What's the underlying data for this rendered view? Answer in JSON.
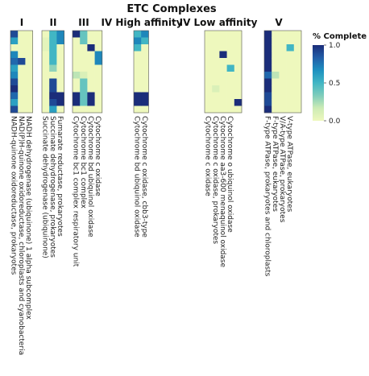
{
  "chart_data": {
    "type": "heatmap",
    "title": "ETC Complexes",
    "n_rows": 12,
    "colorbar": {
      "title": "% Complete",
      "ticks": [
        "1.0",
        "0.5",
        "0.0"
      ],
      "tick_values": [
        1.0,
        0.5,
        0.0
      ],
      "colors": [
        "#eef8bd",
        "#cdebb5",
        "#7fcdbb",
        "#41b6c4",
        "#1d91c0",
        "#225ea8",
        "#1b2d7a"
      ],
      "placement": "right"
    },
    "groups": [
      {
        "label": "I",
        "columns": [
          {
            "name": "NADH-quinone oxidoreductase, prokaryotes",
            "values": [
              0.9,
              0.6,
              0.0,
              0.7,
              0.8,
              0.6,
              0.7,
              0.9,
              1.0,
              0.8,
              0.6,
              0.9
            ]
          },
          {
            "name": "NAD(P)H-quinone oxidoreductase, chloroplasts and cyanobacteria",
            "values": [
              0.0,
              0.0,
              0.0,
              0.0,
              0.9,
              0.0,
              0.0,
              0.0,
              0.0,
              0.0,
              0.0,
              0.0
            ]
          },
          {
            "name": "NADH dehydrogenase (ubiquinone) 1 alpha subcomplex",
            "values": [
              0.0,
              0.0,
              0.0,
              0.0,
              0.0,
              0.0,
              0.0,
              0.0,
              0.0,
              0.0,
              0.0,
              0.0
            ]
          }
        ]
      },
      {
        "label": "II",
        "columns": [
          {
            "name": "Succinate dehydrogenase (ubiquinone)",
            "values": [
              0.0,
              0.05,
              0.05,
              0.0,
              0.0,
              0.0,
              0.0,
              0.0,
              0.0,
              0.0,
              0.0,
              0.0
            ]
          },
          {
            "name": "Succinate dehydrogenase, prokaryotes",
            "values": [
              0.5,
              0.5,
              0.5,
              0.5,
              0.5,
              0.3,
              0.0,
              0.9,
              0.9,
              1.0,
              0.9,
              0.6
            ]
          },
          {
            "name": "Fumarate reductase, prokaryotes",
            "values": [
              0.7,
              0.7,
              0.0,
              0.0,
              0.0,
              0.0,
              0.0,
              0.0,
              0.0,
              1.0,
              1.0,
              0.0
            ]
          }
        ]
      },
      {
        "label": "III",
        "columns": [
          {
            "name": "Cytochrome bc1 complex respiratory unit",
            "values": [
              1.0,
              0.0,
              0.0,
              0.0,
              0.0,
              0.0,
              0.2,
              0.0,
              0.0,
              1.0,
              1.0,
              0.0
            ]
          },
          {
            "name": "Cytochrome bc1 complex",
            "values": [
              0.4,
              0.4,
              0.0,
              0.0,
              0.0,
              0.0,
              0.1,
              0.4,
              0.4,
              0.4,
              0.4,
              0.0
            ]
          },
          {
            "name": "Cytochrome bd ubiquinol oxidase",
            "values": [
              0.0,
              0.0,
              1.0,
              0.0,
              0.0,
              0.0,
              0.0,
              0.0,
              0.0,
              1.0,
              1.0,
              0.0
            ]
          },
          {
            "name": "Cytochrome c oxidase",
            "values": [
              0.0,
              0.0,
              0.0,
              0.7,
              0.7,
              0.0,
              0.0,
              0.0,
              0.0,
              0.0,
              0.0,
              0.0
            ]
          }
        ]
      },
      {
        "label": "IV High affinity",
        "columns": [
          {
            "name": "Cytochrome bd ubiquinol oxidase",
            "values": [
              0.5,
              0.7,
              0.5,
              0.0,
              0.0,
              0.0,
              0.0,
              0.0,
              0.0,
              1.0,
              1.0,
              0.0
            ]
          },
          {
            "name": "Cytochrome c oxidase, cbb3-type",
            "values": [
              0.7,
              0.5,
              0.0,
              0.0,
              0.0,
              0.0,
              0.0,
              0.0,
              0.0,
              1.0,
              1.0,
              0.0
            ]
          }
        ]
      },
      {
        "label": "IV Low affinity",
        "columns": [
          {
            "name": "Cytochrome c oxidase",
            "values": [
              0.0,
              0.0,
              0.0,
              0.0,
              0.0,
              0.0,
              0.0,
              0.0,
              0.0,
              0.0,
              0.0,
              0.0
            ]
          },
          {
            "name": "Cytochrome c oxidase, prokaryotes",
            "values": [
              0.0,
              0.0,
              0.0,
              0.0,
              0.0,
              0.0,
              0.0,
              0.0,
              0.1,
              0.0,
              0.0,
              0.0
            ]
          },
          {
            "name": "Cytochrome aa3-600 menaquinol oxidase",
            "values": [
              0.0,
              0.0,
              0.0,
              1.0,
              0.0,
              0.0,
              0.0,
              0.0,
              0.0,
              0.0,
              0.0,
              0.0
            ]
          },
          {
            "name": "Cytochrome o ubiquinol oxidase",
            "values": [
              0.0,
              0.0,
              0.0,
              0.0,
              0.0,
              0.5,
              0.0,
              0.0,
              0.0,
              0.0,
              0.0,
              0.0
            ]
          },
          {
            "name": "",
            "values": [
              0.0,
              0.0,
              0.0,
              0.0,
              0.0,
              0.0,
              0.0,
              0.0,
              0.0,
              0.0,
              1.0,
              0.0
            ]
          }
        ]
      },
      {
        "label": "V",
        "columns": [
          {
            "name": "F-type ATPase, prokaryotes and chloroplasts",
            "values": [
              1.0,
              1.0,
              1.0,
              1.0,
              1.0,
              1.0,
              0.8,
              1.0,
              1.0,
              0.9,
              0.9,
              1.0
            ]
          },
          {
            "name": "F-type ATPase, eukaryotes",
            "values": [
              0.0,
              0.0,
              0.0,
              0.0,
              0.0,
              0.0,
              0.2,
              0.0,
              0.0,
              0.0,
              0.0,
              0.0
            ]
          },
          {
            "name": "V/A-type ATPase, prokaryotes",
            "values": [
              0.0,
              0.0,
              0.0,
              0.0,
              0.0,
              0.0,
              0.0,
              0.0,
              0.0,
              0.0,
              0.0,
              0.0
            ]
          },
          {
            "name": "V-type ATPase, eukaryotes",
            "values": [
              0.0,
              0.0,
              0.5,
              0.0,
              0.0,
              0.0,
              0.0,
              0.0,
              0.0,
              0.0,
              0.0,
              0.0
            ]
          },
          {
            "name": "",
            "values": [
              0.0,
              0.0,
              0.0,
              0.0,
              0.0,
              0.0,
              0.0,
              0.0,
              0.0,
              0.0,
              0.0,
              0.0
            ]
          }
        ]
      }
    ]
  }
}
